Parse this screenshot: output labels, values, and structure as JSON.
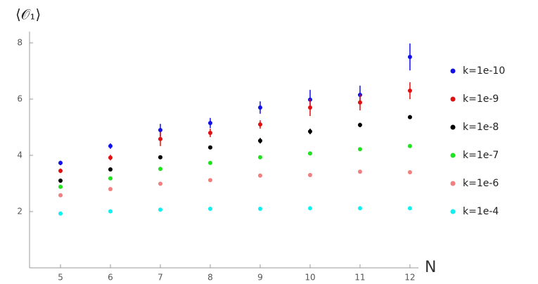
{
  "chart_data": {
    "type": "scatter",
    "ylabel": "⟨𝒪₁⟩",
    "xlabel": "N",
    "x": [
      5,
      6,
      7,
      8,
      9,
      10,
      11,
      12
    ],
    "series": [
      {
        "name": "k=1e-10",
        "color": "#1010e8",
        "values": [
          3.73,
          4.33,
          4.9,
          5.15,
          5.7,
          5.98,
          6.15,
          7.5
        ],
        "errors": [
          0.08,
          0.1,
          0.22,
          0.18,
          0.22,
          0.35,
          0.33,
          0.48
        ]
      },
      {
        "name": "k=1e-9",
        "color": "#e01010",
        "values": [
          3.45,
          3.92,
          4.58,
          4.8,
          5.1,
          5.7,
          5.88,
          6.3
        ],
        "errors": [
          0.08,
          0.1,
          0.25,
          0.15,
          0.15,
          0.3,
          0.28,
          0.3
        ]
      },
      {
        "name": "k=1e-8",
        "color": "#000000",
        "values": [
          3.1,
          3.5,
          3.93,
          4.28,
          4.52,
          4.85,
          5.08,
          5.36
        ],
        "errors": [
          0.07,
          0.05,
          0.05,
          0.05,
          0.1,
          0.1,
          0.08,
          0.07
        ]
      },
      {
        "name": "k=1e-7",
        "color": "#22e022",
        "values": [
          2.88,
          3.18,
          3.52,
          3.73,
          3.93,
          4.07,
          4.22,
          4.33
        ],
        "errors": [
          0.04,
          0.04,
          0.05,
          0.04,
          0.04,
          0.05,
          0.06,
          0.04
        ]
      },
      {
        "name": "k=1e-6",
        "color": "#f08080",
        "values": [
          2.58,
          2.8,
          2.99,
          3.12,
          3.28,
          3.3,
          3.42,
          3.4
        ],
        "errors": [
          0.04,
          0.04,
          0.04,
          0.04,
          0.04,
          0.04,
          0.04,
          0.04
        ]
      },
      {
        "name": "k=1e-4",
        "color": "#10f0f0",
        "values": [
          1.93,
          2.01,
          2.07,
          2.1,
          2.1,
          2.12,
          2.12,
          2.12
        ],
        "errors": [
          0.02,
          0.02,
          0.02,
          0.02,
          0.02,
          0.02,
          0.02,
          0.02
        ]
      }
    ],
    "xlim": [
      4.38,
      12.17
    ],
    "ylim": [
      0,
      8.4
    ],
    "xticks": [
      5,
      6,
      7,
      8,
      9,
      10,
      11,
      12
    ],
    "yticks": [
      2,
      4,
      6,
      8
    ],
    "legend": "right"
  }
}
